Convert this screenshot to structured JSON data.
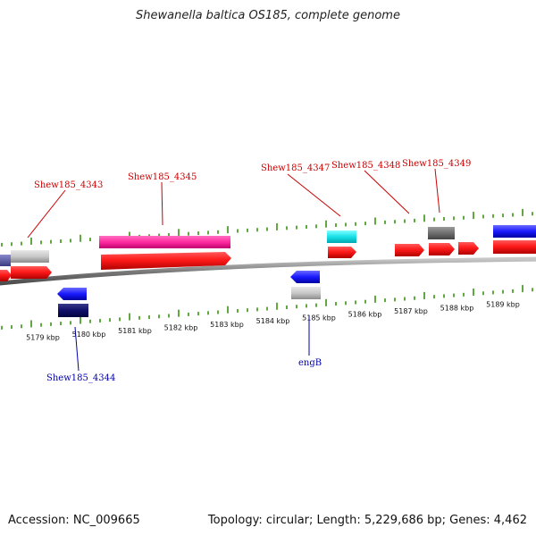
{
  "title": "Shewanella baltica OS185, complete genome",
  "footer": {
    "accession": "Accession: NC_009665",
    "summary": "Topology: circular; Length: 5,229,686 bp; Genes: 4,462"
  },
  "colors": {
    "forward_label": "#cc0000",
    "reverse_label": "#0000aa",
    "tick": "#2a8a00",
    "backbone": "#888888"
  },
  "axis": {
    "unit": "kbp",
    "tick_labels": [
      "5179 kbp",
      "5180 kbp",
      "5181 kbp",
      "5182 kbp",
      "5183 kbp",
      "5184 kbp",
      "5185 kbp",
      "5186 kbp",
      "5187 kbp",
      "5188 kbp",
      "5189 kbp"
    ]
  },
  "genes": {
    "forward_labels": [
      "Shew185_4343",
      "Shew185_4345",
      "Shew185_4347",
      "Shew185_4348",
      "Shew185_4349"
    ],
    "reverse_labels": [
      "Shew185_4344",
      "engB"
    ]
  }
}
